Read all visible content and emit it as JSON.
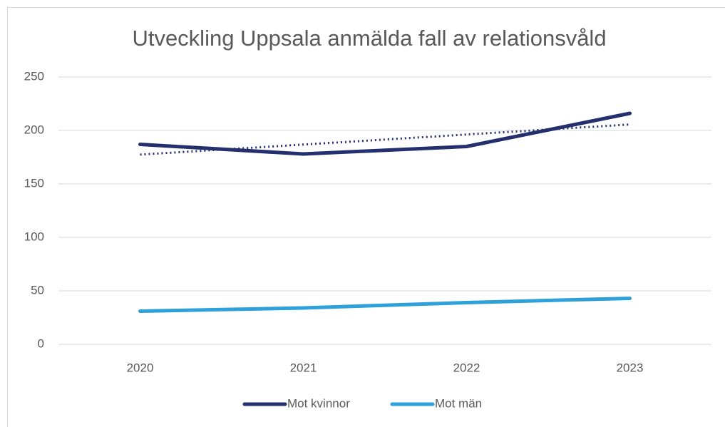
{
  "chart_data": {
    "type": "line",
    "title": "Utveckling Uppsala anmälda fall av relationsvåld",
    "categories": [
      "2020",
      "2021",
      "2022",
      "2023"
    ],
    "series": [
      {
        "name": "Mot kvinnor",
        "color": "#24306e",
        "values": [
          187,
          178,
          185,
          216
        ]
      },
      {
        "name": "Mot män",
        "color": "#2ea1da",
        "values": [
          31,
          34,
          39,
          43
        ]
      }
    ],
    "trendline": {
      "color": "#24306e",
      "style": "dotted",
      "values": [
        177.4,
        186.8,
        196.2,
        205.6
      ]
    },
    "ylim": [
      0,
      250
    ],
    "yticks": [
      0,
      50,
      100,
      150,
      200,
      250
    ],
    "grid": true,
    "legend": "bottom"
  }
}
